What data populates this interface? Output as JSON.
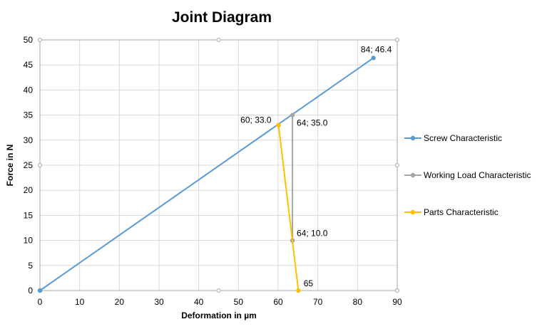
{
  "chart_data": {
    "type": "scatter",
    "title": "Joint Diagram",
    "xlabel": "Deformation in µm",
    "ylabel": "Force in N",
    "xlim": [
      0,
      90
    ],
    "ylim": [
      0,
      50
    ],
    "x_ticks": [
      0,
      10,
      20,
      30,
      40,
      50,
      60,
      70,
      80,
      90
    ],
    "y_ticks": [
      0,
      5,
      10,
      15,
      20,
      25,
      30,
      35,
      40,
      45,
      50
    ],
    "grid": true,
    "legend_position": "right",
    "series": [
      {
        "name": "Screw Characteristic",
        "color": "#5B9BD5",
        "points": [
          [
            0,
            0
          ],
          [
            84,
            46.4
          ]
        ],
        "labels": [
          "",
          "84; 46.4"
        ]
      },
      {
        "name": "Working Load Characteristic",
        "color": "#A5A5A5",
        "points": [
          [
            63.6,
            35.0
          ],
          [
            63.6,
            10.0
          ]
        ],
        "labels": [
          "64; 35.0",
          "64; 10.0"
        ]
      },
      {
        "name": "Parts Characteristic",
        "color": "#FFC000",
        "points": [
          [
            60.1,
            33.0
          ],
          [
            65.1,
            0
          ]
        ],
        "labels": [
          "60; 33.0",
          "65"
        ]
      }
    ]
  }
}
